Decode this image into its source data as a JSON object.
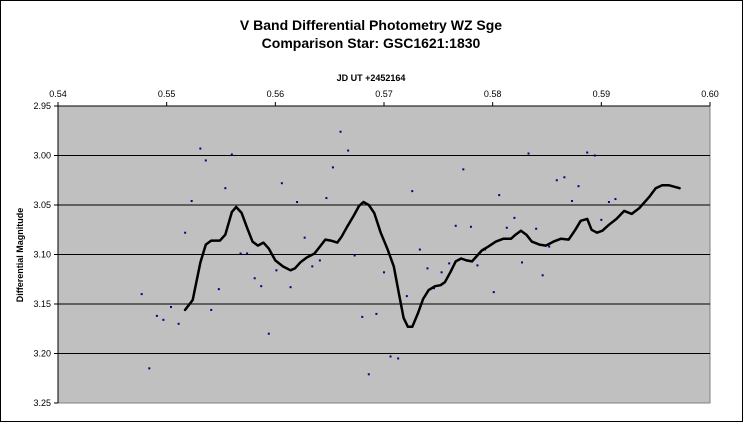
{
  "chart_data": {
    "type": "scatter",
    "title": "V Band Differential Photometry WZ Sge",
    "subtitle": "Comparison Star: GSC1621:1830",
    "xlabel": "JD UT +2452164",
    "ylabel": "Differential Magnitude",
    "xlim": [
      0.54,
      0.6
    ],
    "ylim": [
      2.95,
      3.25
    ],
    "y_inverted": true,
    "x_axis_position": "top",
    "grid": "horizontal",
    "legend": "none",
    "x_ticks": [
      "0.54",
      "0.55",
      "0.56",
      "0.57",
      "0.58",
      "0.59",
      "0.60"
    ],
    "y_ticks": [
      "2.95",
      "3.00",
      "3.05",
      "3.10",
      "3.15",
      "3.20",
      "3.25"
    ],
    "colors": {
      "plot_bg": "#c0c0c0",
      "points": "#00008b",
      "curve": "#000000",
      "grid": "#000000"
    },
    "series": [
      {
        "style": "points",
        "points": [
          [
            0.5477,
            3.14
          ],
          [
            0.5484,
            3.215
          ],
          [
            0.5491,
            3.162
          ],
          [
            0.5497,
            3.166
          ],
          [
            0.5504,
            3.153
          ],
          [
            0.5511,
            3.17
          ],
          [
            0.5517,
            3.078
          ],
          [
            0.5523,
            3.046
          ],
          [
            0.5531,
            2.993
          ],
          [
            0.5536,
            3.005
          ],
          [
            0.5541,
            3.156
          ],
          [
            0.5548,
            3.135
          ],
          [
            0.5554,
            3.033
          ],
          [
            0.556,
            2.999
          ],
          [
            0.5568,
            3.099
          ],
          [
            0.5574,
            3.099
          ],
          [
            0.5581,
            3.124
          ],
          [
            0.5587,
            3.132
          ],
          [
            0.5594,
            3.18
          ],
          [
            0.5601,
            3.116
          ],
          [
            0.5606,
            3.028
          ],
          [
            0.5614,
            3.133
          ],
          [
            0.562,
            3.047
          ],
          [
            0.5627,
            3.083
          ],
          [
            0.5634,
            3.112
          ],
          [
            0.5641,
            3.106
          ],
          [
            0.5647,
            3.043
          ],
          [
            0.5653,
            3.012
          ],
          [
            0.566,
            2.976
          ],
          [
            0.5667,
            2.995
          ],
          [
            0.5673,
            3.101
          ],
          [
            0.568,
            3.163
          ],
          [
            0.5686,
            3.221
          ],
          [
            0.5693,
            3.16
          ],
          [
            0.57,
            3.118
          ],
          [
            0.5706,
            3.203
          ],
          [
            0.5713,
            3.205
          ],
          [
            0.5721,
            3.142
          ],
          [
            0.5726,
            3.036
          ],
          [
            0.5733,
            3.095
          ],
          [
            0.574,
            3.114
          ],
          [
            0.5746,
            3.134
          ],
          [
            0.5753,
            3.118
          ],
          [
            0.576,
            3.109
          ],
          [
            0.5766,
            3.071
          ],
          [
            0.5773,
            3.014
          ],
          [
            0.578,
            3.072
          ],
          [
            0.5786,
            3.111
          ],
          [
            0.5793,
            3.095
          ],
          [
            0.5801,
            3.138
          ],
          [
            0.5806,
            3.04
          ],
          [
            0.5813,
            3.073
          ],
          [
            0.582,
            3.063
          ],
          [
            0.5827,
            3.108
          ],
          [
            0.5833,
            2.998
          ],
          [
            0.584,
            3.074
          ],
          [
            0.5846,
            3.121
          ],
          [
            0.5852,
            3.092
          ],
          [
            0.5859,
            3.025
          ],
          [
            0.5866,
            3.022
          ],
          [
            0.5873,
            3.046
          ],
          [
            0.5879,
            3.031
          ],
          [
            0.5887,
            2.997
          ],
          [
            0.5894,
            3.0
          ],
          [
            0.59,
            3.065
          ],
          [
            0.5907,
            3.047
          ],
          [
            0.5913,
            3.044
          ]
        ]
      },
      {
        "style": "line",
        "points": [
          [
            0.5517,
            3.156
          ],
          [
            0.5524,
            3.146
          ],
          [
            0.5531,
            3.108
          ],
          [
            0.5536,
            3.09
          ],
          [
            0.5541,
            3.086
          ],
          [
            0.5549,
            3.086
          ],
          [
            0.5554,
            3.08
          ],
          [
            0.556,
            3.057
          ],
          [
            0.5564,
            3.052
          ],
          [
            0.5569,
            3.058
          ],
          [
            0.5574,
            3.073
          ],
          [
            0.5579,
            3.087
          ],
          [
            0.5584,
            3.091
          ],
          [
            0.5589,
            3.088
          ],
          [
            0.5594,
            3.094
          ],
          [
            0.56,
            3.106
          ],
          [
            0.5607,
            3.112
          ],
          [
            0.5614,
            3.116
          ],
          [
            0.5618,
            3.114
          ],
          [
            0.5623,
            3.108
          ],
          [
            0.5629,
            3.103
          ],
          [
            0.5636,
            3.099
          ],
          [
            0.5641,
            3.092
          ],
          [
            0.5646,
            3.085
          ],
          [
            0.5651,
            3.086
          ],
          [
            0.5657,
            3.088
          ],
          [
            0.5661,
            3.082
          ],
          [
            0.5666,
            3.072
          ],
          [
            0.5672,
            3.061
          ],
          [
            0.5677,
            3.051
          ],
          [
            0.5681,
            3.047
          ],
          [
            0.5686,
            3.05
          ],
          [
            0.5691,
            3.058
          ],
          [
            0.5697,
            3.078
          ],
          [
            0.5703,
            3.094
          ],
          [
            0.5709,
            3.112
          ],
          [
            0.5714,
            3.141
          ],
          [
            0.5718,
            3.164
          ],
          [
            0.5722,
            3.173
          ],
          [
            0.5726,
            3.173
          ],
          [
            0.5731,
            3.16
          ],
          [
            0.5736,
            3.145
          ],
          [
            0.5741,
            3.136
          ],
          [
            0.5747,
            3.132
          ],
          [
            0.5752,
            3.131
          ],
          [
            0.5756,
            3.128
          ],
          [
            0.5761,
            3.118
          ],
          [
            0.5766,
            3.107
          ],
          [
            0.5771,
            3.104
          ],
          [
            0.5776,
            3.106
          ],
          [
            0.5781,
            3.107
          ],
          [
            0.5785,
            3.102
          ],
          [
            0.579,
            3.096
          ],
          [
            0.5796,
            3.092
          ],
          [
            0.5803,
            3.087
          ],
          [
            0.581,
            3.084
          ],
          [
            0.5817,
            3.084
          ],
          [
            0.5821,
            3.08
          ],
          [
            0.5826,
            3.076
          ],
          [
            0.5831,
            3.08
          ],
          [
            0.5836,
            3.087
          ],
          [
            0.5843,
            3.09
          ],
          [
            0.5849,
            3.091
          ],
          [
            0.5856,
            3.087
          ],
          [
            0.5863,
            3.084
          ],
          [
            0.587,
            3.085
          ],
          [
            0.5876,
            3.075
          ],
          [
            0.5881,
            3.066
          ],
          [
            0.5887,
            3.064
          ],
          [
            0.5891,
            3.075
          ],
          [
            0.5896,
            3.078
          ],
          [
            0.5901,
            3.076
          ],
          [
            0.5907,
            3.07
          ],
          [
            0.5914,
            3.064
          ],
          [
            0.5921,
            3.056
          ],
          [
            0.5928,
            3.059
          ],
          [
            0.5935,
            3.053
          ],
          [
            0.5944,
            3.042
          ],
          [
            0.595,
            3.033
          ],
          [
            0.5956,
            3.03
          ],
          [
            0.5962,
            3.03
          ],
          [
            0.5972,
            3.033
          ]
        ]
      }
    ]
  }
}
